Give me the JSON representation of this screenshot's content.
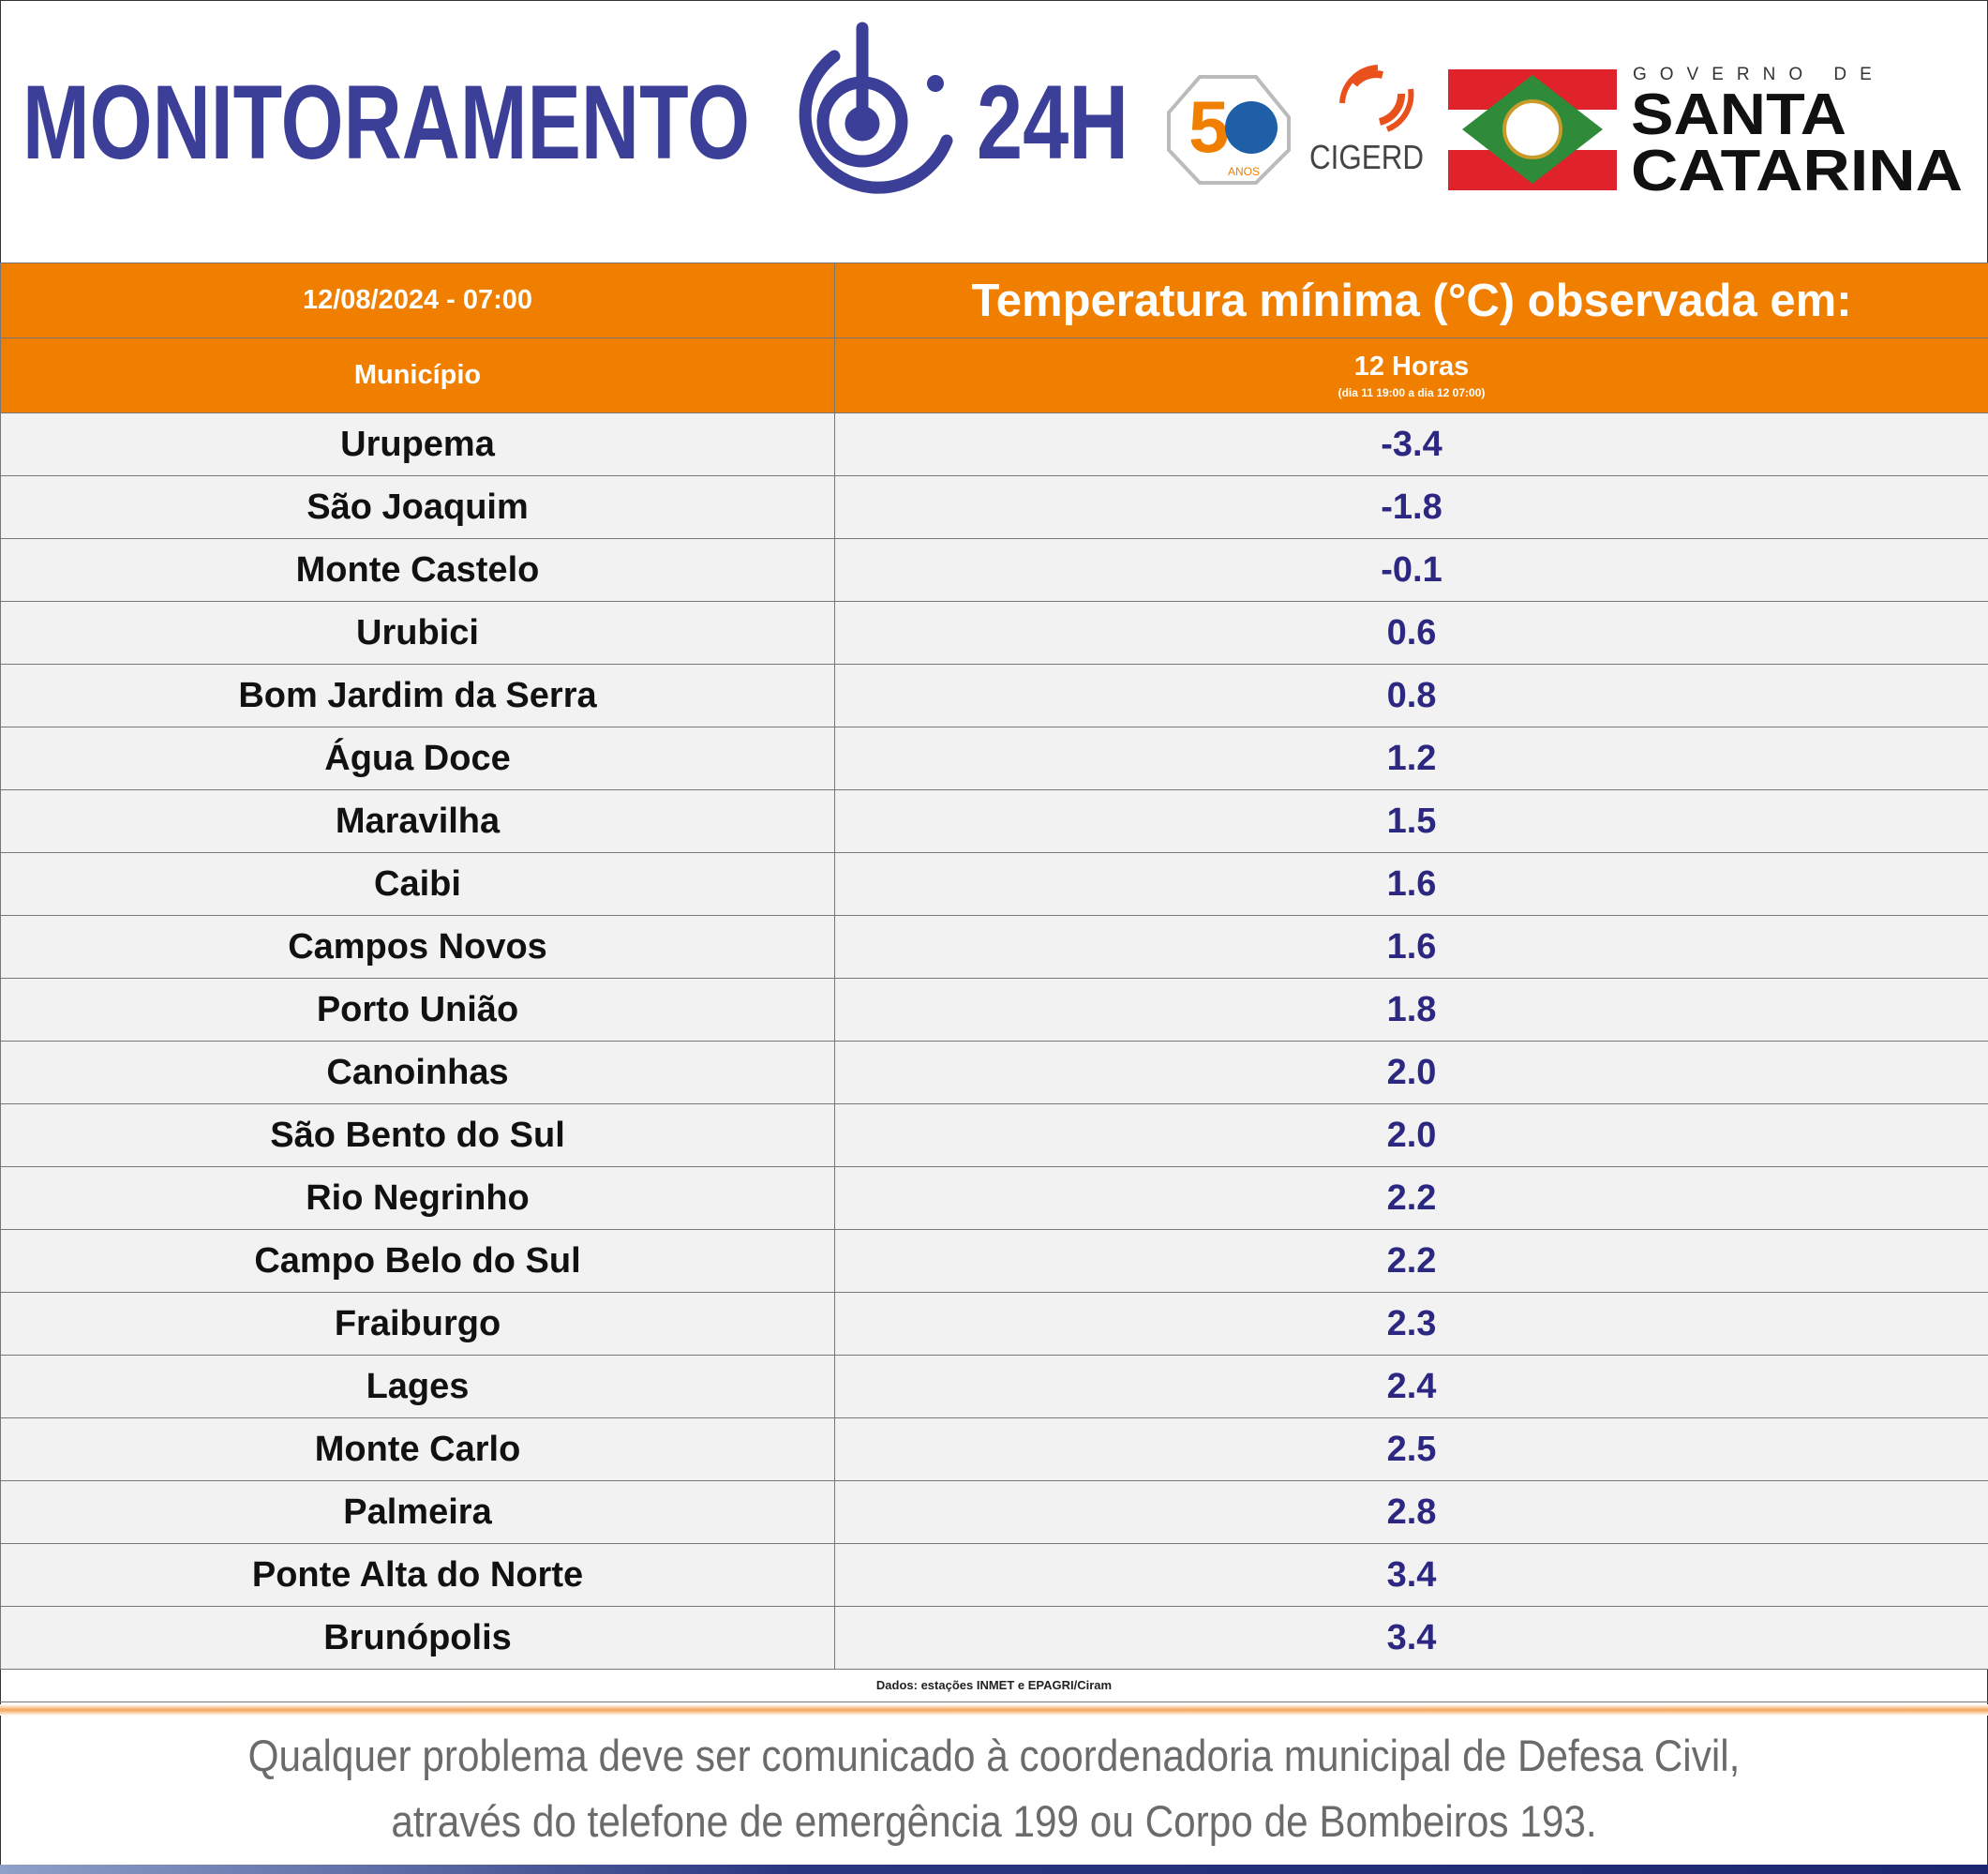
{
  "header": {
    "title": "MONITORAMENTO",
    "title_suffix": "24H",
    "badge_anos": "ANOS",
    "cigerd": "CIGERD",
    "gov_prefix": "GOVERNO DE",
    "gov_line1": "SANTA",
    "gov_line2": "CATARINA"
  },
  "table": {
    "datetime": "12/08/2024 - 07:00",
    "heading": "Temperatura mínima (°C) observada em:",
    "col_municipio": "Município",
    "col_period": "12 Horas",
    "col_period_note": "(dia 11 19:00 a dia 12 07:00)",
    "rows": [
      [
        "Urupema",
        "-3.4"
      ],
      [
        "São Joaquim",
        "-1.8"
      ],
      [
        "Monte Castelo",
        "-0.1"
      ],
      [
        "Urubici",
        "0.6"
      ],
      [
        "Bom Jardim da Serra",
        "0.8"
      ],
      [
        "Água Doce",
        "1.2"
      ],
      [
        "Maravilha",
        "1.5"
      ],
      [
        "Caibi",
        "1.6"
      ],
      [
        "Campos Novos",
        "1.6"
      ],
      [
        "Porto União",
        "1.8"
      ],
      [
        "Canoinhas",
        "2.0"
      ],
      [
        "São Bento do Sul",
        "2.0"
      ],
      [
        "Rio Negrinho",
        "2.2"
      ],
      [
        "Campo Belo do Sul",
        "2.2"
      ],
      [
        "Fraiburgo",
        "2.3"
      ],
      [
        "Lages",
        "2.4"
      ],
      [
        "Monte Carlo",
        "2.5"
      ],
      [
        "Palmeira",
        "2.8"
      ],
      [
        "Ponte Alta do Norte",
        "3.4"
      ],
      [
        "Brunópolis",
        "3.4"
      ]
    ],
    "source": "Dados: estações INMET e EPAGRI/Ciram"
  },
  "footer": {
    "line1": "Qualquer problema deve ser comunicado à coordenadoria municipal de Defesa Civil,",
    "line2": "através do telefone de emergência 199 ou Corpo de Bombeiros 193."
  }
}
